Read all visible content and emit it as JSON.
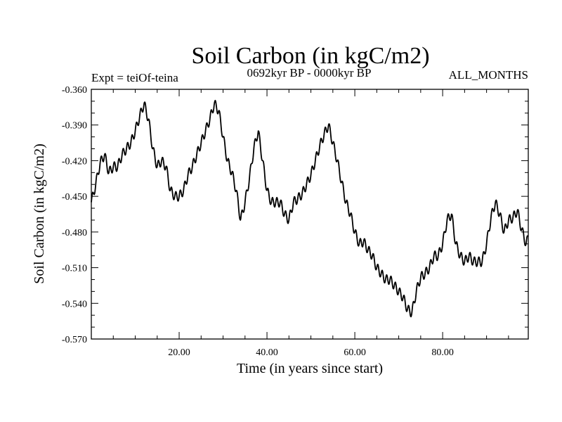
{
  "chart_data": {
    "type": "line",
    "title": "Soil Carbon (in kgC/m2)",
    "subtitle": "0692kyr BP - 0000kyr BP",
    "left_note": "Expt = teiOf-teina",
    "right_note": "ALL_MONTHS",
    "xlabel": "Time (in years since start)",
    "ylabel": "Soil Carbon (in kgC/m2)",
    "xlim": [
      0,
      99.5
    ],
    "ylim": [
      -0.57,
      -0.36
    ],
    "xticks": [
      20,
      40,
      60,
      80
    ],
    "xtick_labels": [
      "20.00",
      "40.00",
      "60.00",
      "80.00"
    ],
    "yticks": [
      -0.36,
      -0.39,
      -0.42,
      -0.45,
      -0.48,
      -0.51,
      -0.54,
      -0.57
    ],
    "ytick_labels": [
      "-0.360",
      "-0.390",
      "-0.420",
      "-0.450",
      "-0.480",
      "-0.510",
      "-0.540",
      "-0.570"
    ],
    "grid": false,
    "series": [
      {
        "name": "Soil Carbon",
        "x": [
          0,
          1,
          2,
          3,
          4,
          5,
          6,
          7,
          8,
          9,
          10,
          11,
          12,
          13,
          14,
          15,
          16,
          17,
          18,
          19,
          20,
          21,
          22,
          23,
          24,
          25,
          26,
          27,
          28,
          29,
          30,
          31,
          32,
          33,
          34,
          35,
          36,
          37,
          38,
          39,
          40,
          41,
          42,
          43,
          44,
          45,
          46,
          47,
          48,
          49,
          50,
          51,
          52,
          53,
          54,
          55,
          56,
          57,
          58,
          59,
          60,
          61,
          62,
          63,
          64,
          65,
          66,
          67,
          68,
          69,
          70,
          71,
          72,
          73,
          74,
          75,
          76,
          77,
          78,
          79,
          80,
          81,
          82,
          83,
          84,
          85,
          86,
          87,
          88,
          89,
          90,
          91,
          92,
          93,
          94,
          95,
          96,
          97,
          98,
          99,
          99.5
        ],
        "values": [
          -0.455,
          -0.44,
          -0.422,
          -0.415,
          -0.43,
          -0.425,
          -0.425,
          -0.415,
          -0.41,
          -0.405,
          -0.395,
          -0.383,
          -0.372,
          -0.385,
          -0.41,
          -0.425,
          -0.42,
          -0.425,
          -0.445,
          -0.45,
          -0.45,
          -0.445,
          -0.432,
          -0.425,
          -0.415,
          -0.405,
          -0.395,
          -0.385,
          -0.372,
          -0.378,
          -0.4,
          -0.42,
          -0.43,
          -0.445,
          -0.47,
          -0.455,
          -0.435,
          -0.41,
          -0.395,
          -0.42,
          -0.445,
          -0.455,
          -0.455,
          -0.455,
          -0.465,
          -0.47,
          -0.455,
          -0.452,
          -0.448,
          -0.44,
          -0.432,
          -0.42,
          -0.408,
          -0.398,
          -0.39,
          -0.405,
          -0.42,
          -0.438,
          -0.455,
          -0.465,
          -0.48,
          -0.49,
          -0.488,
          -0.495,
          -0.5,
          -0.51,
          -0.515,
          -0.52,
          -0.52,
          -0.525,
          -0.53,
          -0.535,
          -0.545,
          -0.548,
          -0.53,
          -0.518,
          -0.515,
          -0.51,
          -0.5,
          -0.5,
          -0.49,
          -0.47,
          -0.465,
          -0.49,
          -0.5,
          -0.505,
          -0.5,
          -0.505,
          -0.505,
          -0.505,
          -0.49,
          -0.468,
          -0.455,
          -0.465,
          -0.48,
          -0.47,
          -0.468,
          -0.462,
          -0.478,
          -0.49,
          -0.485
        ]
      }
    ]
  }
}
